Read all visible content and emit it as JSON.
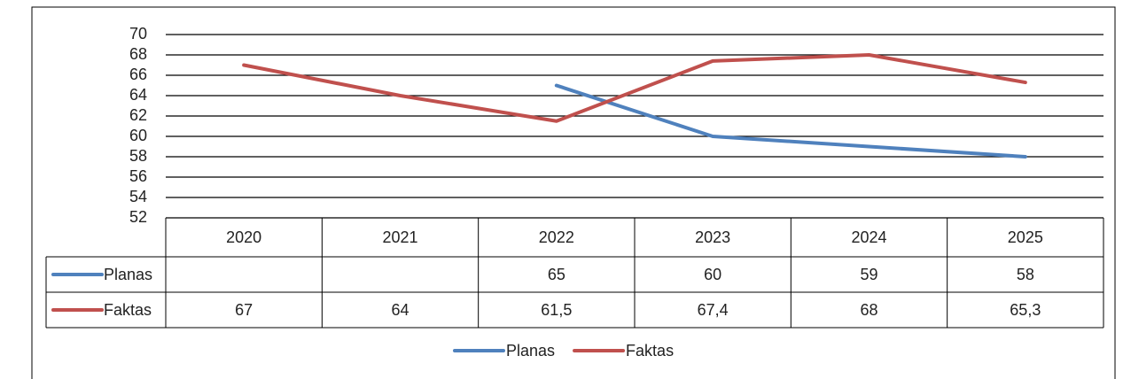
{
  "chart_data": {
    "type": "line",
    "categories": [
      "2020",
      "2021",
      "2022",
      "2023",
      "2024",
      "2025"
    ],
    "series": [
      {
        "name": "Planas",
        "color": "#4f81bd",
        "values": [
          null,
          null,
          65,
          60,
          59,
          58
        ]
      },
      {
        "name": "Faktas",
        "color": "#c0504d",
        "values": [
          67,
          64,
          61.5,
          67.4,
          68,
          65.3
        ],
        "value_labels": [
          "67",
          "64",
          "61,5",
          "67,4",
          "68",
          "65,3"
        ]
      }
    ],
    "ylim": [
      52,
      70
    ],
    "yticks": [
      52,
      54,
      56,
      58,
      60,
      62,
      64,
      66,
      68,
      70
    ],
    "grid": true,
    "legend": "bottom",
    "data_table": true
  }
}
